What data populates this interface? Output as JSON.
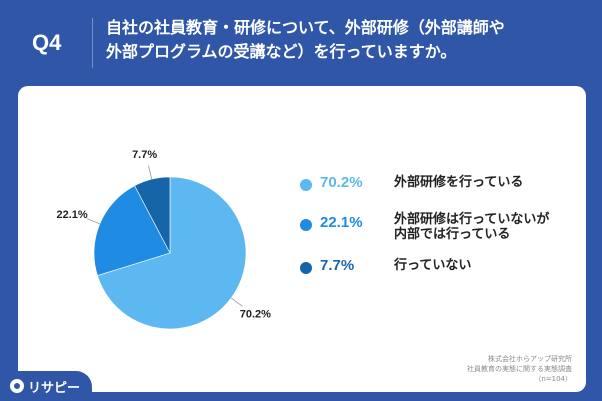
{
  "header": {
    "q_label": "Q4",
    "question_line1": "自社の社員教育・研修について、外部研修（外部講師や",
    "question_line2": "外部プログラムの受講など）を行っていますか。"
  },
  "chart_data": {
    "type": "pie",
    "slices": [
      {
        "label_line1": "外部研修を行っている",
        "label_line2": "",
        "value": 70.2,
        "value_label": "70.2%",
        "color": "#5db8f2"
      },
      {
        "label_line1": "外部研修は行っていないが",
        "label_line2": "内部では行っている",
        "value": 22.1,
        "value_label": "22.1%",
        "color": "#1f8be3"
      },
      {
        "label_line1": "行っていない",
        "label_line2": "",
        "value": 7.7,
        "value_label": "7.7%",
        "color": "#1765a9"
      }
    ],
    "legend_position": "right"
  },
  "source": {
    "line1": "株式会社ホらアップ研究所",
    "line2": "社員教育の実態に関する実態調査",
    "line3": "（n=104）"
  },
  "logo": {
    "text": "リサピー",
    "icon": "location-pin-icon"
  }
}
